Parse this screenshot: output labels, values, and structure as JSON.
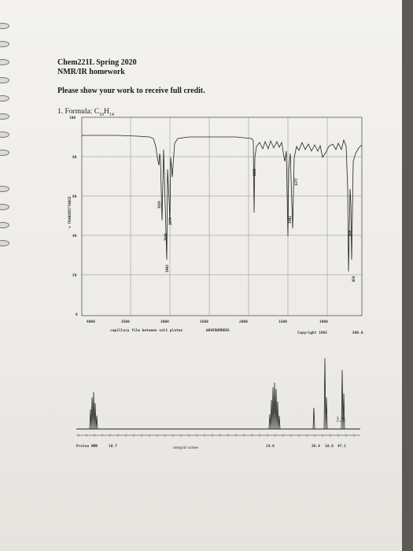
{
  "header": {
    "course": "Chem221L Spring 2020",
    "assignment": "NMR/IR homework",
    "instructions": "Please show your work to receive full credit."
  },
  "problem": {
    "number": "1. Formula: C",
    "c_sub": "10",
    "h": "H",
    "h_sub": "14"
  },
  "ir": {
    "y_ticks": [
      "100",
      "80",
      "60",
      "40",
      "20",
      "0"
    ],
    "y_axis_label": "% TRANSMITTANCE",
    "x_ticks": [
      "4000",
      "3500",
      "3000",
      "2500",
      "2000",
      "1500",
      "1000"
    ],
    "x_label_left": "capillary film between salt plates",
    "x_label_right": "WAVENUMBERS",
    "copyright": "Copyright 1992",
    "code": "500.0",
    "peak_labels": [
      "3020",
      "2930",
      "2874",
      "2963",
      "1605",
      "1462",
      "1377",
      "889",
      "859"
    ]
  },
  "nmr": {
    "scale_label": "Proton NMR",
    "integrals": [
      "18.7",
      "14.0",
      "36.4",
      "18.8",
      "47.1"
    ],
    "integral_label": "integral values",
    "hz_label": "1 Hz"
  }
}
